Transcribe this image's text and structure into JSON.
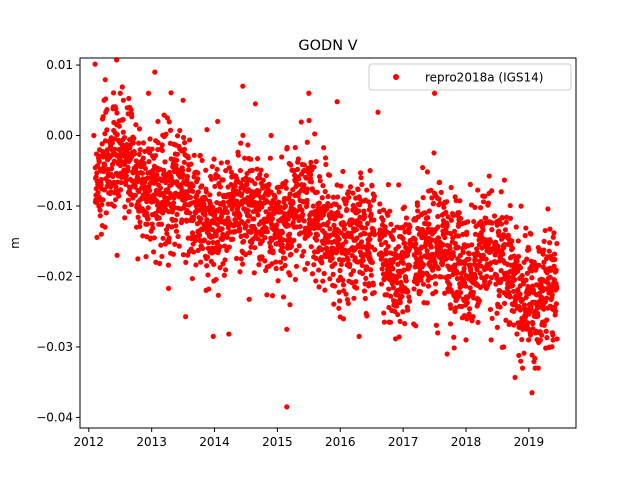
{
  "chart_data": {
    "type": "scatter",
    "title": "GODN V",
    "xlabel": "",
    "ylabel": "m",
    "xlim": [
      2011.86,
      2019.75
    ],
    "ylim": [
      -0.0415,
      0.011
    ],
    "xticks": [
      2012,
      2013,
      2014,
      2015,
      2016,
      2017,
      2018,
      2019
    ],
    "xtick_labels": [
      "2012",
      "2013",
      "2014",
      "2015",
      "2016",
      "2017",
      "2018",
      "2019"
    ],
    "yticks": [
      0.01,
      0.0,
      -0.01,
      -0.02,
      -0.03,
      -0.04
    ],
    "ytick_labels": [
      "0.01",
      "0.00",
      "−0.01",
      "−0.02",
      "−0.03",
      "−0.04"
    ],
    "legend_position": "upper right",
    "grid": false,
    "marker_color": "#ff0000",
    "series": [
      {
        "name": "repro2018a (IGS14)",
        "color": "#ff0000",
        "marker": "circle",
        "trend": {
          "x_start": 2012.1,
          "y_start": -0.0055,
          "x_end": 2019.45,
          "y_end": -0.0215
        },
        "scatter_std": 0.0042,
        "x": [
          2012.08,
          2012.2,
          2012.45,
          2012.5,
          2012.55,
          2012.65,
          2012.78,
          2012.95,
          2013.05,
          2013.1,
          2013.25,
          2013.5,
          2013.55,
          2013.98,
          2014.05,
          2014.45,
          2014.65,
          2014.9,
          2015.15,
          2015.15,
          2015.2,
          2015.5,
          2015.95,
          2016.05,
          2016.3,
          2016.6,
          2016.8,
          2017.2,
          2017.5,
          2017.55,
          2017.7,
          2017.9,
          2018.0,
          2018.4,
          2018.6,
          2018.9,
          2019.02,
          2019.05,
          2019.1,
          2019.15
        ],
        "y": [
          0.0,
          -0.014,
          -0.017,
          0.006,
          0.005,
          0.004,
          -0.0175,
          0.006,
          0.009,
          0.002,
          0.0025,
          0.005,
          -0.012,
          -0.0285,
          0.002,
          0.007,
          0.0045,
          0.0,
          -0.0385,
          -0.0275,
          -0.024,
          0.006,
          0.0048,
          -0.026,
          -0.0285,
          0.0033,
          -0.0265,
          -0.027,
          0.006,
          -0.028,
          -0.031,
          -0.021,
          -0.029,
          -0.029,
          -0.03,
          -0.033,
          -0.028,
          -0.0365,
          -0.033,
          -0.033
        ]
      }
    ]
  }
}
